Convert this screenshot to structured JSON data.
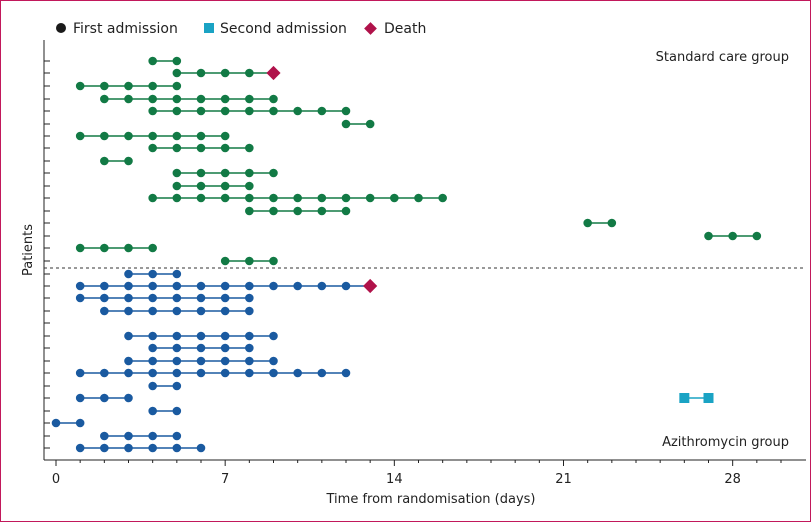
{
  "chart_data": {
    "type": "scatter",
    "title": "",
    "xlabel": "Time from randomisation (days)",
    "ylabel": "Patients",
    "xlim": [
      0,
      30
    ],
    "xticks": [
      0,
      7,
      14,
      21,
      28
    ],
    "grid": false,
    "legend_position": "top-left",
    "legend": [
      {
        "label": "First admission",
        "marker": "circle",
        "color": "#1a1a1a"
      },
      {
        "label": "Second admission",
        "marker": "square",
        "color": "#1aa3c4"
      },
      {
        "label": "Death",
        "marker": "diamond",
        "color": "#b0124a"
      }
    ],
    "divider": "dashed",
    "groups": [
      {
        "name": "Standard care group",
        "color": "#127a45",
        "patients": [
          {
            "days": [
              4,
              5
            ]
          },
          {
            "days": [
              5,
              6,
              7,
              8
            ],
            "death": 9
          },
          {
            "days": [
              1,
              2,
              3,
              4,
              5
            ]
          },
          {
            "days": [
              2,
              3,
              4,
              5,
              6,
              7,
              8,
              9
            ]
          },
          {
            "days": [
              4,
              5,
              6,
              7,
              8,
              9,
              10,
              11,
              12
            ]
          },
          {
            "days": [
              12,
              13
            ]
          },
          {
            "days": [
              1,
              2,
              3,
              4,
              5,
              6,
              7
            ]
          },
          {
            "days": [
              4,
              5,
              6,
              7,
              8
            ]
          },
          {
            "days": [
              2,
              3
            ]
          },
          {
            "days": [
              5,
              6,
              7,
              8,
              9
            ]
          },
          {
            "days": [
              5,
              6,
              7,
              8
            ]
          },
          {
            "days": [
              4,
              5,
              6,
              7,
              8,
              9,
              10,
              11,
              12,
              13,
              14,
              15,
              16
            ]
          },
          {
            "days": [
              8,
              9,
              10,
              11,
              12
            ]
          },
          {
            "days": [
              22,
              23
            ]
          },
          {
            "days": [
              27,
              28,
              29
            ]
          },
          {
            "days": [
              1,
              2,
              3,
              4
            ]
          },
          {
            "days": [
              7,
              8,
              9
            ]
          }
        ]
      },
      {
        "name": "Azithromycin group",
        "color": "#1a5aa0",
        "patients": [
          {
            "days": [
              3,
              4,
              5
            ]
          },
          {
            "days": [
              1,
              2,
              3,
              4,
              5,
              6,
              7,
              8,
              9,
              10,
              11,
              12
            ],
            "death": 13
          },
          {
            "days": [
              1,
              2,
              3,
              4,
              5,
              6,
              7,
              8
            ]
          },
          {
            "days": [
              2,
              3,
              4,
              5,
              6,
              7,
              8
            ]
          },
          {
            "days": []
          },
          {
            "days": [
              3,
              4,
              5,
              6,
              7,
              8,
              9
            ]
          },
          {
            "days": [
              4,
              5,
              6,
              7,
              8
            ]
          },
          {
            "days": [
              3,
              4,
              5,
              6,
              7,
              8,
              9
            ]
          },
          {
            "days": [
              1,
              2,
              3,
              4,
              5,
              6,
              7,
              8,
              9,
              10,
              11,
              12
            ]
          },
          {
            "days": [
              4,
              5
            ]
          },
          {
            "days": [
              1,
              2,
              3
            ],
            "second": [
              26,
              27
            ]
          },
          {
            "days": [
              4,
              5
            ]
          },
          {
            "days": [
              0,
              1
            ]
          },
          {
            "days": [
              2,
              3,
              4,
              5
            ]
          },
          {
            "days": [
              1,
              2,
              3,
              4,
              5,
              6
            ]
          }
        ]
      }
    ]
  }
}
